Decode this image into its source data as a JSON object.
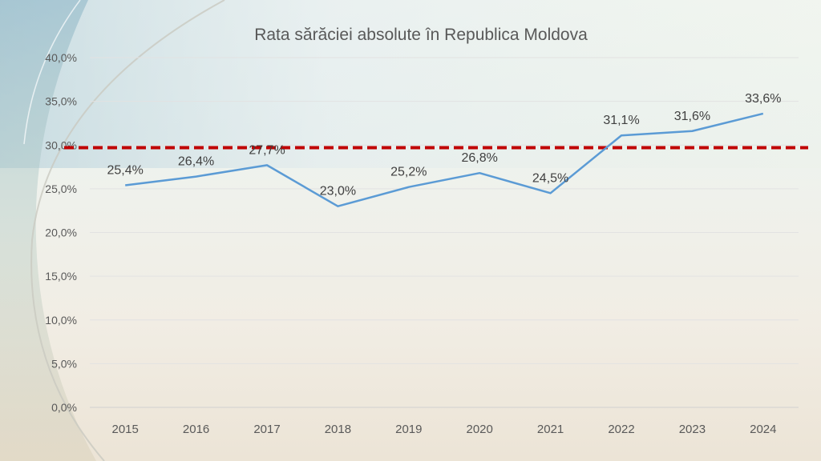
{
  "chart_data": {
    "type": "line",
    "title": "Rata sărăciei absolute în Republica Moldova",
    "xlabel": "",
    "ylabel": "",
    "categories": [
      "2015",
      "2016",
      "2017",
      "2018",
      "2019",
      "2020",
      "2021",
      "2022",
      "2023",
      "2024"
    ],
    "series": [
      {
        "values": [
          25.4,
          26.4,
          27.7,
          23.0,
          25.2,
          26.8,
          24.5,
          31.1,
          31.6,
          33.6
        ],
        "labels": [
          "25,4%",
          "26,4%",
          "27,7%",
          "23,0%",
          "25,2%",
          "26,8%",
          "24,5%",
          "31,1%",
          "31,6%",
          "33,6%"
        ],
        "color": "#5b9bd5"
      }
    ],
    "reference_line": {
      "value": 29.7,
      "color": "#c00000",
      "style": "dashed"
    },
    "ylim": [
      0,
      40
    ],
    "yticks": [
      0,
      5,
      10,
      15,
      20,
      25,
      30,
      35,
      40
    ],
    "ytick_labels": [
      "0,0%",
      "5,0%",
      "10,0%",
      "15,0%",
      "20,0%",
      "25,0%",
      "30,0%",
      "35,0%",
      "40,0%"
    ],
    "grid": true,
    "legend": "none"
  }
}
